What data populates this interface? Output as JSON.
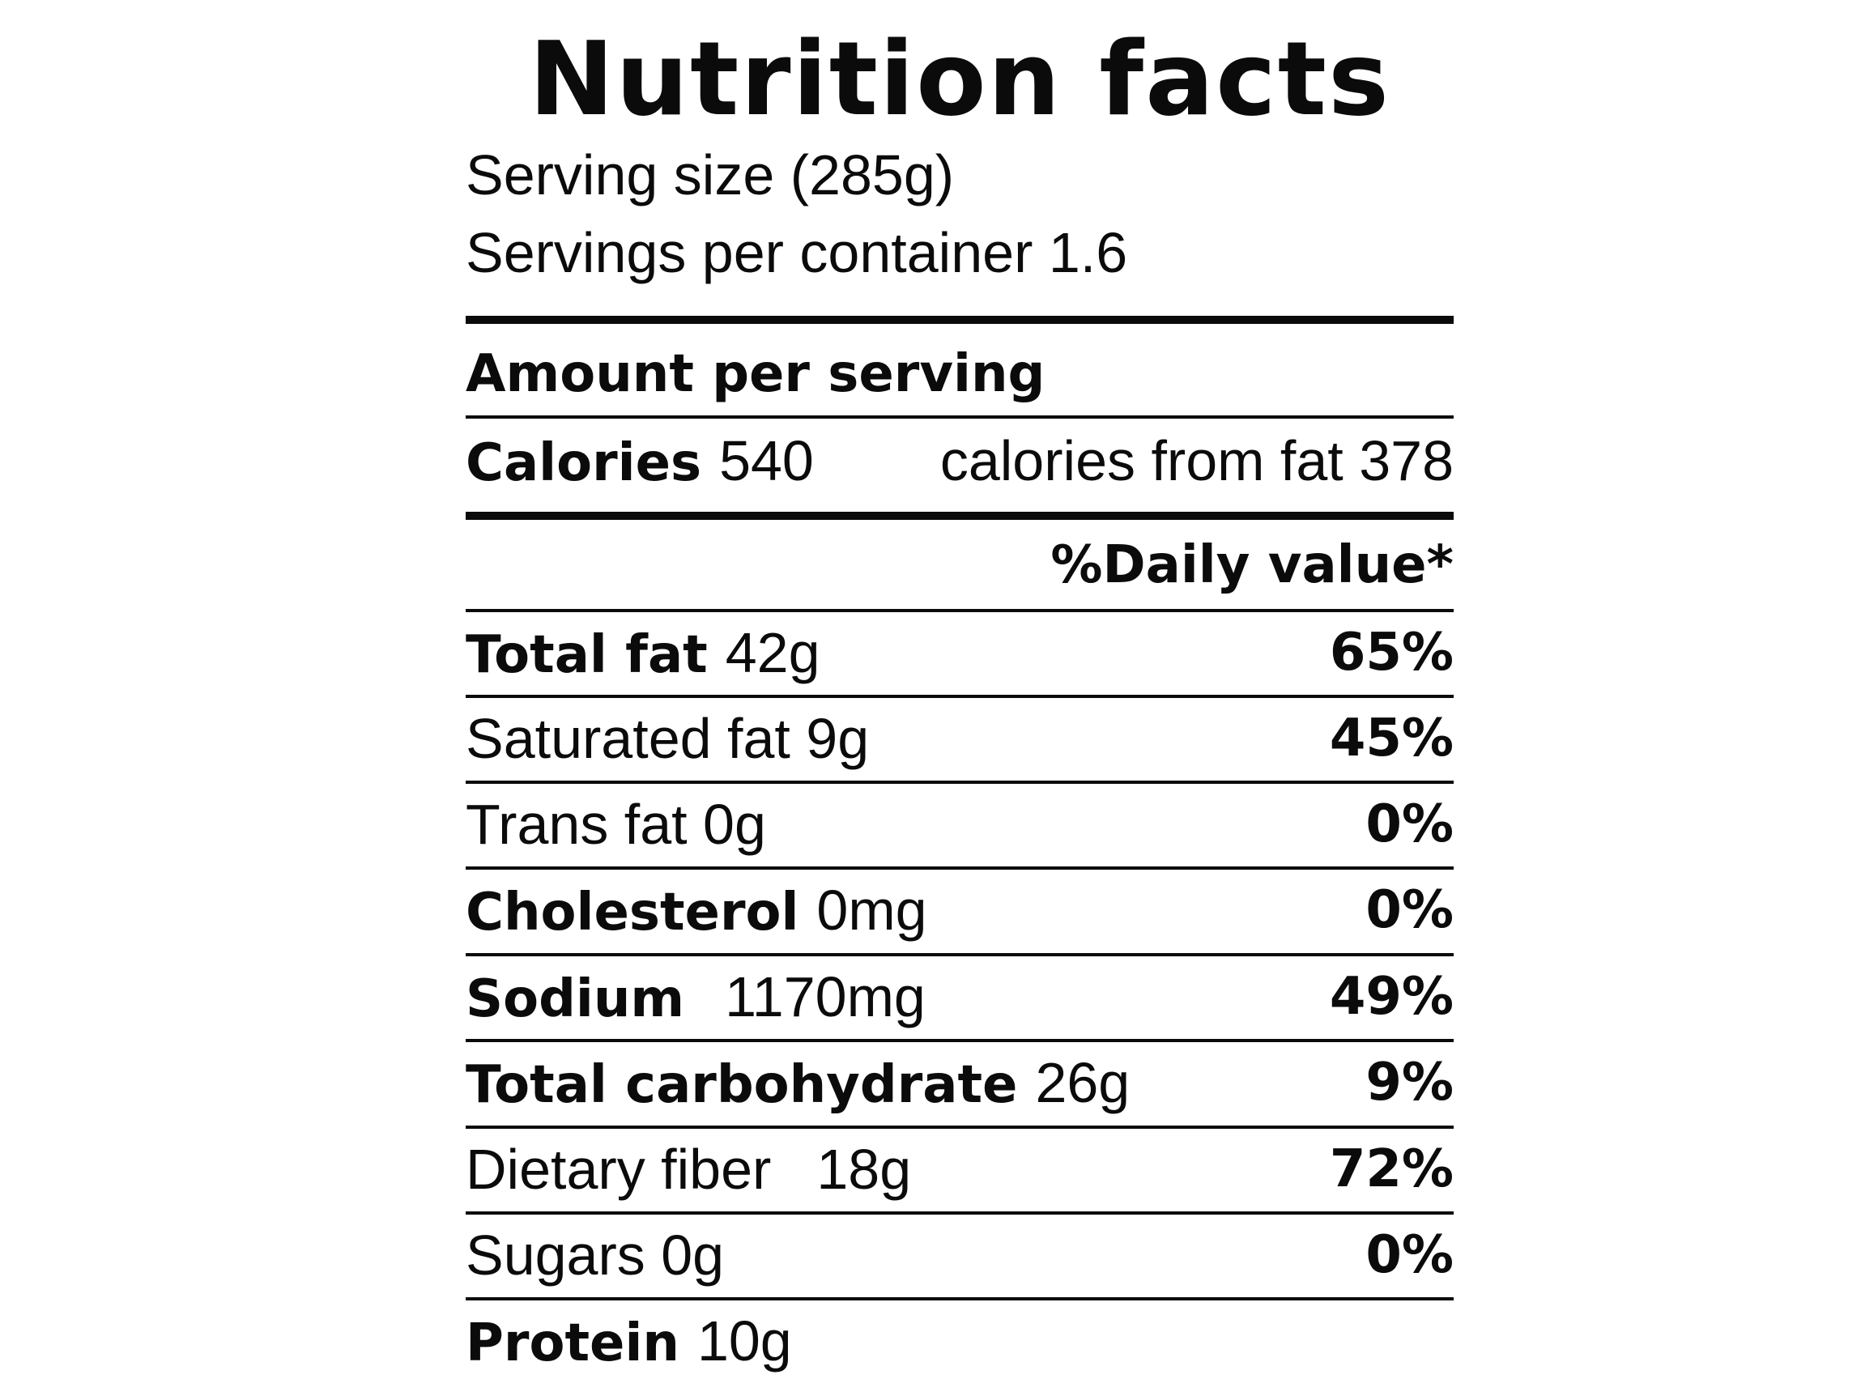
{
  "title": "Nutrition facts",
  "serving_size": "Serving size (285g)",
  "servings_per_container": "Servings per container 1.6",
  "amount_per_serving": "Amount per serving",
  "calories": {
    "label": "Calories",
    "value": "540",
    "from_fat": "calories from fat 378"
  },
  "daily_value_header": "%Daily value*",
  "rows": [
    {
      "name": "Total fat",
      "amount": "42g",
      "dv": "65%"
    },
    {
      "name": "Saturated fat 9g",
      "dv": "45%"
    },
    {
      "name": "Trans fat 0g",
      "dv": "0%"
    },
    {
      "name": "Cholesterol",
      "amount": "0mg",
      "dv": "0%"
    },
    {
      "name": "Sodium",
      "amount": "1170mg",
      "dv": "49%"
    },
    {
      "name": "Total carbohydrate",
      "amount": "26g",
      "dv": "9%"
    },
    {
      "name": "Dietary fiber",
      "amount": "18g",
      "dv": "72%"
    },
    {
      "name": "Sugars 0g",
      "dv": "0%"
    },
    {
      "name": "Protein",
      "amount": "10g"
    }
  ]
}
